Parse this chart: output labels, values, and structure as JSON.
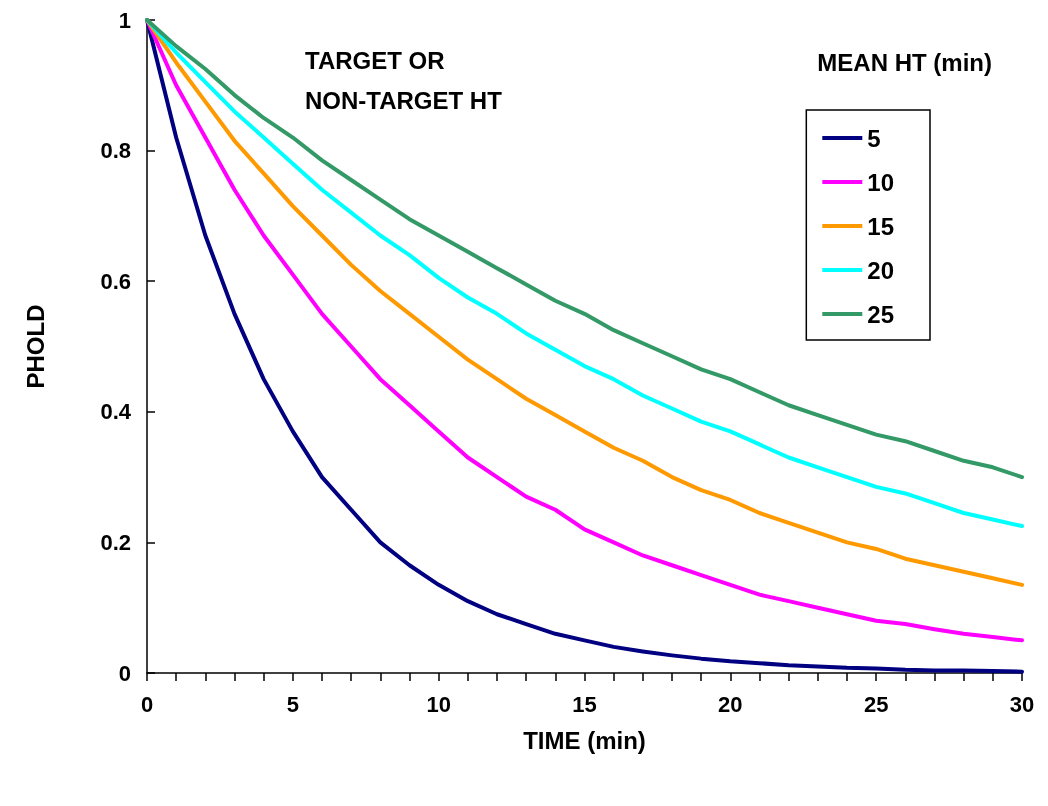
{
  "chart_data": {
    "type": "line",
    "xlabel": "TIME (min)",
    "ylabel": "PHOLD",
    "legend_title": "MEAN HT (min)",
    "annotations": [
      "TARGET OR NON-TARGET HT"
    ],
    "x": [
      0,
      1,
      2,
      3,
      4,
      5,
      6,
      7,
      8,
      9,
      10,
      11,
      12,
      13,
      14,
      15,
      16,
      17,
      18,
      19,
      20,
      21,
      22,
      23,
      24,
      25,
      26,
      27,
      28,
      29,
      30
    ],
    "series": [
      {
        "name": "5",
        "color": "#000080",
        "values": [
          1,
          0.82,
          0.67,
          0.55,
          0.45,
          0.37,
          0.3,
          0.25,
          0.2,
          0.165,
          0.135,
          0.11,
          0.09,
          0.075,
          0.06,
          0.05,
          0.04,
          0.033,
          0.027,
          0.022,
          0.018,
          0.015,
          0.012,
          0.01,
          0.008,
          0.007,
          0.005,
          0.004,
          0.004,
          0.003,
          0.002
        ]
      },
      {
        "name": "10",
        "color": "#ff00ff",
        "values": [
          1,
          0.9,
          0.82,
          0.74,
          0.67,
          0.61,
          0.55,
          0.5,
          0.45,
          0.41,
          0.37,
          0.33,
          0.3,
          0.27,
          0.25,
          0.22,
          0.2,
          0.18,
          0.165,
          0.15,
          0.135,
          0.12,
          0.11,
          0.1,
          0.09,
          0.08,
          0.075,
          0.067,
          0.06,
          0.055,
          0.05
        ]
      },
      {
        "name": "15",
        "color": "#ff9900",
        "values": [
          1,
          0.935,
          0.875,
          0.815,
          0.765,
          0.715,
          0.67,
          0.625,
          0.585,
          0.55,
          0.515,
          0.48,
          0.45,
          0.42,
          0.395,
          0.37,
          0.345,
          0.325,
          0.3,
          0.28,
          0.265,
          0.245,
          0.23,
          0.215,
          0.2,
          0.19,
          0.175,
          0.165,
          0.155,
          0.145,
          0.135
        ]
      },
      {
        "name": "20",
        "color": "#00ffff",
        "values": [
          1,
          0.95,
          0.905,
          0.86,
          0.82,
          0.78,
          0.74,
          0.705,
          0.67,
          0.64,
          0.605,
          0.575,
          0.55,
          0.52,
          0.495,
          0.47,
          0.45,
          0.425,
          0.405,
          0.385,
          0.37,
          0.35,
          0.33,
          0.315,
          0.3,
          0.285,
          0.275,
          0.26,
          0.245,
          0.235,
          0.225
        ]
      },
      {
        "name": "25",
        "color": "#339966",
        "values": [
          1,
          0.96,
          0.925,
          0.885,
          0.85,
          0.82,
          0.785,
          0.755,
          0.725,
          0.695,
          0.67,
          0.645,
          0.62,
          0.595,
          0.57,
          0.55,
          0.525,
          0.505,
          0.485,
          0.465,
          0.45,
          0.43,
          0.41,
          0.395,
          0.38,
          0.365,
          0.355,
          0.34,
          0.325,
          0.315,
          0.3
        ]
      }
    ],
    "xlim": [
      0,
      30
    ],
    "xticks": [
      0,
      {
        "value": 1,
        "label": null
      },
      {
        "value": 2,
        "label": null
      },
      {
        "value": 3,
        "label": null
      },
      {
        "value": 4,
        "label": null
      },
      5,
      {
        "value": 6,
        "label": null
      },
      {
        "value": 7,
        "label": null
      },
      {
        "value": 8,
        "label": null
      },
      {
        "value": 9,
        "label": null
      },
      10,
      {
        "value": 11,
        "label": null
      },
      {
        "value": 12,
        "label": null
      },
      {
        "value": 13,
        "label": null
      },
      {
        "value": 14,
        "label": null
      },
      15,
      {
        "value": 16,
        "label": null
      },
      {
        "value": 17,
        "label": null
      },
      {
        "value": 18,
        "label": null
      },
      {
        "value": 19,
        "label": null
      },
      20,
      {
        "value": 21,
        "label": null
      },
      {
        "value": 22,
        "label": null
      },
      {
        "value": 23,
        "label": null
      },
      {
        "value": 24,
        "label": null
      },
      25,
      {
        "value": 26,
        "label": null
      },
      {
        "value": 27,
        "label": null
      },
      {
        "value": 28,
        "label": null
      },
      {
        "value": 29,
        "label": null
      },
      30
    ],
    "ylim": [
      0,
      1
    ],
    "yticks": [
      0,
      0.2,
      0.4,
      0.6,
      0.8,
      1
    ],
    "grid": false,
    "legend": "top right",
    "marker": "none",
    "line_style": "solid"
  }
}
